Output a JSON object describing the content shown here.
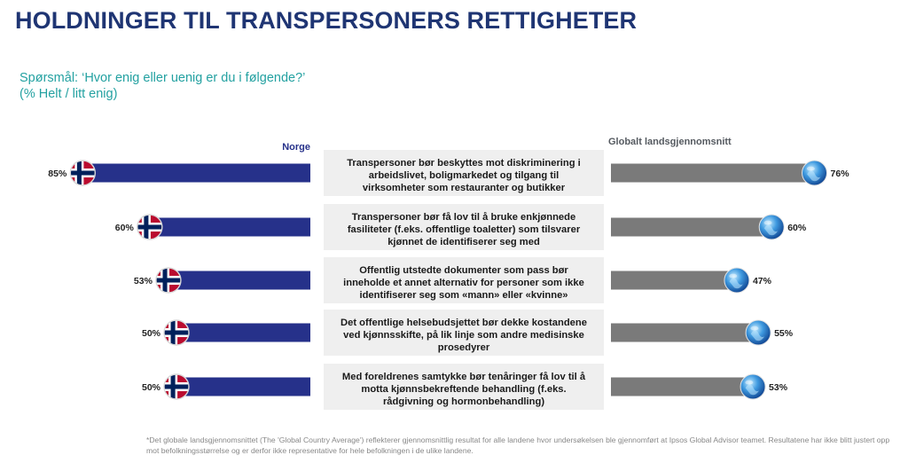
{
  "title": "HOLDNINGER TIL TRANSPERSONERS RETTIGHETER",
  "question_line1": "Spørsmål: ‘Hvor enig eller uenig er du i følgende?’",
  "question_line2": "(% Helt / litt enig)",
  "footnote": "*Det globale landsgjennomsnittet (The 'Global Country Average') reflekterer gjennomsnittlig resultat for alle landene hvor undersøkelsen ble gjennomført at Ipsos Global Advisor teamet. Resultatene har ikke blitt justert opp mot befolkningsstørrelse og er derfor ikke representative for hele befolkningen i de ulike landene.",
  "colors": {
    "title": "#1f3573",
    "question": "#23a1a1",
    "norway_bar": "#26318a",
    "global_bar": "#7a7a7a",
    "statement_box": "#efefef"
  },
  "icons": {
    "norway": "norway-flag-icon",
    "global": "globe-icon"
  },
  "chart_data": {
    "type": "bar",
    "layout": "diverging-butterfly",
    "series": [
      {
        "name": "Norge",
        "values": [
          85,
          60,
          53,
          50,
          50
        ]
      },
      {
        "name": "Globalt landsgjennomsnitt",
        "values": [
          76,
          60,
          47,
          55,
          53
        ]
      }
    ],
    "categories": [
      [
        "Transpersoner bør beskyttes mot diskriminering i",
        "arbeidslivet, boligmarkedet og tilgang til",
        "virksomheter som restauranter og butikker"
      ],
      [
        "Transpersoner bør få lov til å bruke enkjønnede",
        "fasiliteter (f.eks. offentlige toaletter) som tilsvarer",
        "kjønnet de identifiserer seg med"
      ],
      [
        "Offentlig utstedte dokumenter som pass bør",
        "inneholde et annet alternativ for personer som ikke",
        "identifiserer seg som «mann» eller «kvinne»"
      ],
      [
        "Det offentlige helsebudsjettet bør dekke kostandene",
        "ved kjønnsskifte, på lik linje som andre medisinske",
        "prosedyrer"
      ],
      [
        "Med foreldrenes samtykke bør tenåringer få lov til å",
        "motta kjønnsbekreftende behandling (f.eks.",
        "rådgivning og hormonbehandling)"
      ]
    ],
    "value_suffix": "%",
    "xlim": [
      0,
      100
    ]
  }
}
